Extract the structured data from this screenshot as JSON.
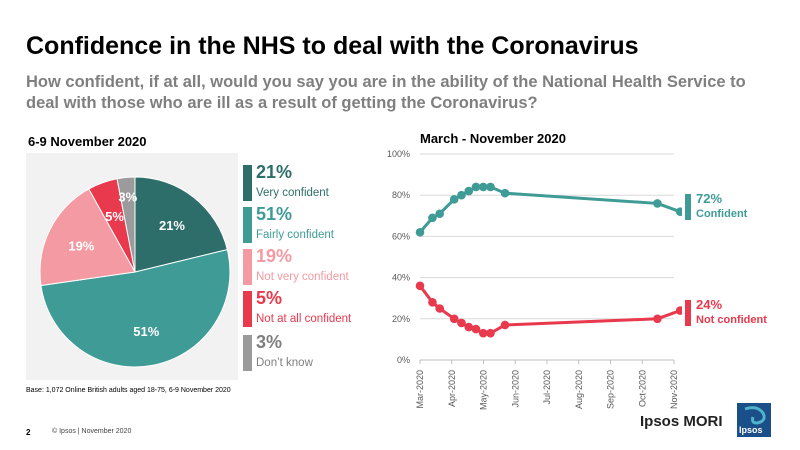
{
  "title": "Confidence in the NHS to deal with the Coronavirus",
  "subtitle": "How confident, if at all, would you say you are in the ability of the National Health Service to deal with those who are ill as a result of getting the Coronavirus?",
  "pie_section_title": "6-9 November 2020",
  "line_section_title": "March - November 2020",
  "base_note": "Base: 1,072  Online British adults aged 18-75,  6-9 November  2020",
  "footer": {
    "page": "2",
    "copyright": "© Ipsos | November  2020"
  },
  "brand": "Ipsos MORI",
  "logo_text": "Ipsos",
  "colors": {
    "very_confident": "#2d6e6a",
    "fairly_confident": "#3f9b96",
    "not_very_confident": "#f49aa2",
    "not_at_all_confident": "#e8394d",
    "dont_know": "#9b9b9b",
    "confident_line": "#3f9b96",
    "not_confident_line": "#e8394d"
  },
  "legend": [
    {
      "pct": "21%",
      "label": "Very confident",
      "color": "#2d6e6a"
    },
    {
      "pct": "51%",
      "label": "Fairly confident",
      "color": "#3f9b96"
    },
    {
      "pct": "19%",
      "label": "Not very confident",
      "color": "#f49aa2"
    },
    {
      "pct": "5%",
      "label": "Not at all confident",
      "color": "#e8394d"
    },
    {
      "pct": "3%",
      "label": "Don’t know",
      "color": "#9b9b9b"
    }
  ],
  "line_end_labels": {
    "confident": {
      "pct": "72%",
      "label": "Confident"
    },
    "not_confident": {
      "pct": "24%",
      "label": "Not confident"
    }
  },
  "chart_data": [
    {
      "type": "pie",
      "title": "6-9 November 2020",
      "categories": [
        "Very confident",
        "Fairly confident",
        "Not very confident",
        "Not at all confident",
        "Don’t know"
      ],
      "values": [
        21,
        51,
        19,
        5,
        3
      ],
      "labels": [
        "21%",
        "51%",
        "19%",
        "5%",
        "3%"
      ],
      "colors": [
        "#2d6e6a",
        "#3f9b96",
        "#f49aa2",
        "#e8394d",
        "#9b9b9b"
      ]
    },
    {
      "type": "line",
      "title": "March - November 2020",
      "ylim": [
        0,
        100
      ],
      "yticks": [
        "0%",
        "20%",
        "40%",
        "60%",
        "80%",
        "100%"
      ],
      "ytick_values": [
        0,
        20,
        40,
        60,
        80,
        100
      ],
      "xticks": [
        "Mar-2020",
        "Apr-2020",
        "May-2020",
        "Jun-2020",
        "Jul-2020",
        "Aug-2020",
        "Sep-2020",
        "Oct-2020",
        "Nov-2020"
      ],
      "xlim": [
        "2020-03-01",
        "2020-11-01"
      ],
      "grid": true,
      "series": [
        {
          "name": "Confident",
          "color": "#3f9b96",
          "x": [
            "2020-03-01",
            "2020-03-13",
            "2020-03-20",
            "2020-04-03",
            "2020-04-10",
            "2020-04-17",
            "2020-04-24",
            "2020-05-01",
            "2020-05-08",
            "2020-05-22",
            "2020-10-16",
            "2020-11-07"
          ],
          "values": [
            62,
            69,
            71,
            78,
            80,
            82,
            84,
            84,
            84,
            81,
            76,
            72
          ]
        },
        {
          "name": "Not confident",
          "color": "#e8394d",
          "x": [
            "2020-03-01",
            "2020-03-13",
            "2020-03-20",
            "2020-04-03",
            "2020-04-10",
            "2020-04-17",
            "2020-04-24",
            "2020-05-01",
            "2020-05-08",
            "2020-05-22",
            "2020-10-16",
            "2020-11-07"
          ],
          "values": [
            36,
            28,
            25,
            20,
            18,
            16,
            15,
            13,
            13,
            17,
            20,
            24
          ]
        }
      ]
    }
  ]
}
